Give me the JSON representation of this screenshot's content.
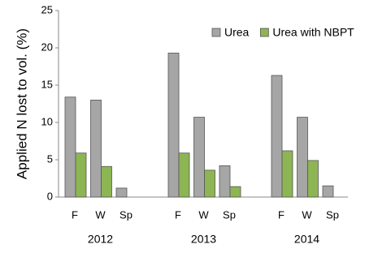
{
  "chart_data": {
    "type": "bar",
    "y_label": "Applied N lost to vol. (%)",
    "categories": [
      "F",
      "W",
      "Sp",
      "F",
      "W",
      "Sp",
      "F",
      "W",
      "Sp"
    ],
    "groups": [
      "2012",
      "2013",
      "2014"
    ],
    "series": [
      {
        "name": "Urea",
        "color": "#a6a6a6",
        "values": [
          13.4,
          13.0,
          1.2,
          19.3,
          10.7,
          4.2,
          16.3,
          10.7,
          1.5
        ]
      },
      {
        "name": "Urea with NBPT",
        "color": "#8db554",
        "values": [
          5.9,
          4.1,
          null,
          5.9,
          3.6,
          1.4,
          6.2,
          4.9,
          null
        ]
      }
    ],
    "ylim": [
      0,
      25
    ],
    "yticks": [
      0,
      5,
      10,
      15,
      20,
      25
    ],
    "grid": false,
    "legend": "top-right"
  }
}
